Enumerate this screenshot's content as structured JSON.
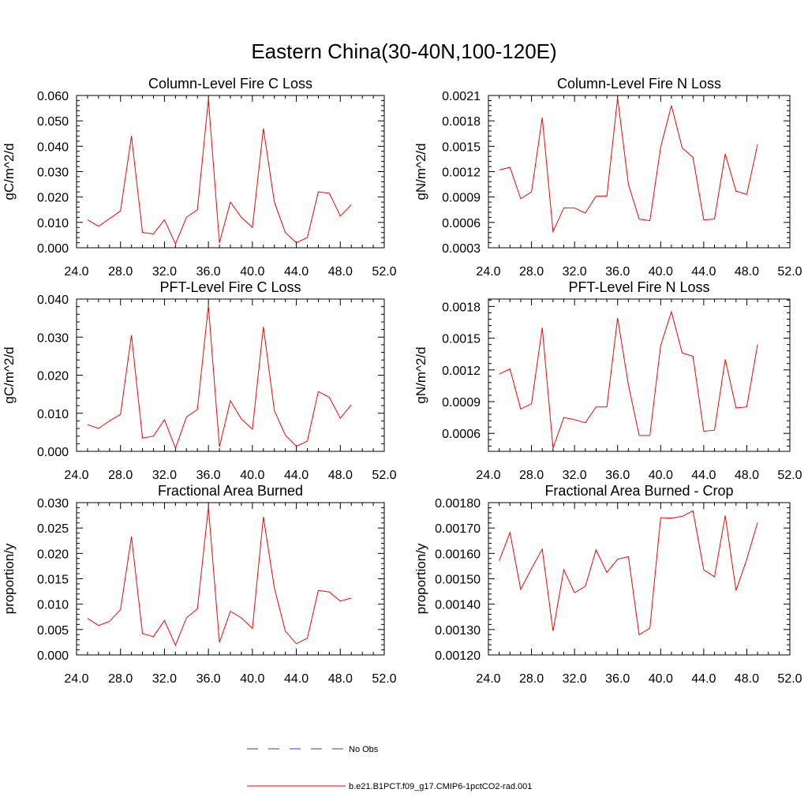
{
  "figure_title": "Eastern China(30-40N,100-120E)",
  "legend": {
    "entries": [
      {
        "label": "No Obs",
        "color": "#3b3bb4",
        "style": "dashed"
      },
      {
        "label": "b.e21.B1PCT.f09_g17.CMIP6-1pctCO2-rad.001",
        "color": "#ff0000",
        "style": "solid"
      }
    ]
  },
  "chart_data": [
    {
      "type": "line",
      "title": "Column-Level Fire C Loss",
      "ylabel": "gC/m^2/d",
      "xlim": [
        24,
        52
      ],
      "ylim": [
        0,
        0.06
      ],
      "xticks": [
        24,
        28,
        32,
        36,
        40,
        44,
        48,
        52
      ],
      "xtick_labels": [
        "24.0",
        "28.0",
        "32.0",
        "36.0",
        "40.0",
        "44.0",
        "48.0",
        "52.0"
      ],
      "yticks": [
        0,
        0.01,
        0.02,
        0.03,
        0.04,
        0.05,
        0.06
      ],
      "ytick_labels": [
        "0.000",
        "0.010",
        "0.020",
        "0.030",
        "0.040",
        "0.050",
        "0.060"
      ],
      "x": [
        25,
        26,
        27,
        28,
        29,
        30,
        31,
        32,
        33,
        34,
        35,
        36,
        37,
        38,
        39,
        40,
        41,
        42,
        43,
        44,
        45,
        46,
        47,
        48,
        49
      ],
      "series": [
        {
          "color": "#ff0000",
          "values": [
            0.011,
            0.0085,
            0.0115,
            0.0145,
            0.044,
            0.006,
            0.0055,
            0.011,
            0.0015,
            0.012,
            0.015,
            0.0585,
            0.002,
            0.018,
            0.012,
            0.008,
            0.047,
            0.018,
            0.006,
            0.002,
            0.004,
            0.022,
            0.0215,
            0.0125,
            0.017
          ]
        }
      ]
    },
    {
      "type": "line",
      "title": "Column-Level Fire N Loss",
      "ylabel": "gN/m^2/d",
      "xlim": [
        24,
        52
      ],
      "ylim": [
        0.0003,
        0.0021
      ],
      "xticks": [
        24,
        28,
        32,
        36,
        40,
        44,
        48,
        52
      ],
      "xtick_labels": [
        "24.0",
        "28.0",
        "32.0",
        "36.0",
        "40.0",
        "44.0",
        "48.0",
        "52.0"
      ],
      "yticks": [
        0.0003,
        0.0006,
        0.0009,
        0.0012,
        0.0015,
        0.0018,
        0.0021
      ],
      "ytick_labels": [
        "0.0003",
        "0.0006",
        "0.0009",
        "0.0012",
        "0.0015",
        "0.0018",
        "0.0021"
      ],
      "x": [
        25,
        26,
        27,
        28,
        29,
        30,
        31,
        32,
        33,
        34,
        35,
        36,
        37,
        38,
        39,
        40,
        41,
        42,
        43,
        44,
        45,
        46,
        47,
        48,
        49
      ],
      "series": [
        {
          "color": "#ff0000",
          "values": [
            0.00122,
            0.00125,
            0.00088,
            0.00096,
            0.00184,
            0.00049,
            0.00077,
            0.00077,
            0.00071,
            0.00091,
            0.00091,
            0.00207,
            0.00105,
            0.00064,
            0.00062,
            0.00149,
            0.00198,
            0.00148,
            0.00137,
            0.00063,
            0.00064,
            0.00141,
            0.00097,
            0.00093,
            0.00152
          ]
        }
      ]
    },
    {
      "type": "line",
      "title": "PFT-Level Fire C Loss",
      "ylabel": "gC/m^2/d",
      "xlim": [
        24,
        52
      ],
      "ylim": [
        0,
        0.04
      ],
      "xticks": [
        24,
        28,
        32,
        36,
        40,
        44,
        48,
        52
      ],
      "xtick_labels": [
        "24.0",
        "28.0",
        "32.0",
        "36.0",
        "40.0",
        "44.0",
        "48.0",
        "52.0"
      ],
      "yticks": [
        0,
        0.01,
        0.02,
        0.03,
        0.04
      ],
      "ytick_labels": [
        "0.000",
        "0.010",
        "0.020",
        "0.030",
        "0.040"
      ],
      "x": [
        25,
        26,
        27,
        28,
        29,
        30,
        31,
        32,
        33,
        34,
        35,
        36,
        37,
        38,
        39,
        40,
        41,
        42,
        43,
        44,
        45,
        46,
        47,
        48,
        49
      ],
      "series": [
        {
          "color": "#ff0000",
          "values": [
            0.007,
            0.006,
            0.008,
            0.0097,
            0.0305,
            0.0035,
            0.004,
            0.0083,
            0.0008,
            0.009,
            0.011,
            0.0383,
            0.0012,
            0.0133,
            0.0085,
            0.0058,
            0.0327,
            0.0107,
            0.0043,
            0.0013,
            0.0027,
            0.0157,
            0.0142,
            0.0087,
            0.0122
          ]
        }
      ]
    },
    {
      "type": "line",
      "title": "PFT-Level Fire N Loss",
      "ylabel": "gN/m^2/d",
      "xlim": [
        24,
        52
      ],
      "ylim": [
        0.00043,
        0.00187
      ],
      "xticks": [
        24,
        28,
        32,
        36,
        40,
        44,
        48,
        52
      ],
      "xtick_labels": [
        "24.0",
        "28.0",
        "32.0",
        "36.0",
        "40.0",
        "44.0",
        "48.0",
        "52.0"
      ],
      "yticks": [
        0.0006,
        0.0009,
        0.0012,
        0.0015,
        0.0018
      ],
      "ytick_labels": [
        "0.0006",
        "0.0009",
        "0.0012",
        "0.0015",
        "0.0018"
      ],
      "x": [
        25,
        26,
        27,
        28,
        29,
        30,
        31,
        32,
        33,
        34,
        35,
        36,
        37,
        38,
        39,
        40,
        41,
        42,
        43,
        44,
        45,
        46,
        47,
        48,
        49
      ],
      "series": [
        {
          "color": "#ff0000",
          "values": [
            0.00116,
            0.00121,
            0.00083,
            0.00088,
            0.0016,
            0.00046,
            0.00075,
            0.00073,
            0.0007,
            0.00085,
            0.00085,
            0.00169,
            0.00106,
            0.00058,
            0.00058,
            0.00143,
            0.00175,
            0.00136,
            0.00133,
            0.00062,
            0.00063,
            0.0013,
            0.00084,
            0.00085,
            0.00144
          ]
        }
      ]
    },
    {
      "type": "line",
      "title": "Fractional Area Burned",
      "ylabel": "proportion/y",
      "xlim": [
        24,
        52
      ],
      "ylim": [
        0,
        0.03
      ],
      "xticks": [
        24,
        28,
        32,
        36,
        40,
        44,
        48,
        52
      ],
      "xtick_labels": [
        "24.0",
        "28.0",
        "32.0",
        "36.0",
        "40.0",
        "44.0",
        "48.0",
        "52.0"
      ],
      "yticks": [
        0,
        0.005,
        0.01,
        0.015,
        0.02,
        0.025,
        0.03
      ],
      "ytick_labels": [
        "0.000",
        "0.005",
        "0.010",
        "0.015",
        "0.020",
        "0.025",
        "0.030"
      ],
      "x": [
        25,
        26,
        27,
        28,
        29,
        30,
        31,
        32,
        33,
        34,
        35,
        36,
        37,
        38,
        39,
        40,
        41,
        42,
        43,
        44,
        45,
        46,
        47,
        48,
        49
      ],
      "series": [
        {
          "color": "#ff0000",
          "values": [
            0.0072,
            0.0058,
            0.0066,
            0.0089,
            0.0233,
            0.0042,
            0.0036,
            0.0068,
            0.0019,
            0.0073,
            0.0091,
            0.0291,
            0.0025,
            0.0086,
            0.0073,
            0.0052,
            0.0272,
            0.0132,
            0.0047,
            0.0022,
            0.0033,
            0.0127,
            0.0124,
            0.0106,
            0.0112
          ]
        }
      ]
    },
    {
      "type": "line",
      "title": "Fractional Area Burned - Crop",
      "ylabel": "proportion/y",
      "xlim": [
        24,
        52
      ],
      "ylim": [
        0.0012,
        0.0018
      ],
      "xticks": [
        24,
        28,
        32,
        36,
        40,
        44,
        48,
        52
      ],
      "xtick_labels": [
        "24.0",
        "28.0",
        "32.0",
        "36.0",
        "40.0",
        "44.0",
        "48.0",
        "52.0"
      ],
      "yticks": [
        0.0012,
        0.0013,
        0.0014,
        0.0015,
        0.0016,
        0.0017,
        0.0018
      ],
      "ytick_labels": [
        "0.00120",
        "0.00130",
        "0.00140",
        "0.00150",
        "0.00160",
        "0.00170",
        "0.00180"
      ],
      "x": [
        25,
        26,
        27,
        28,
        29,
        30,
        31,
        32,
        33,
        34,
        35,
        36,
        37,
        38,
        39,
        40,
        41,
        42,
        43,
        44,
        45,
        46,
        47,
        48,
        49
      ],
      "series": [
        {
          "color": "#ff0000",
          "values": [
            0.001571,
            0.001682,
            0.001458,
            0.00154,
            0.001617,
            0.001294,
            0.001536,
            0.001445,
            0.00147,
            0.001614,
            0.001525,
            0.001577,
            0.001587,
            0.00128,
            0.001305,
            0.001741,
            0.001739,
            0.001746,
            0.001768,
            0.001535,
            0.001508,
            0.001749,
            0.001454,
            0.001577,
            0.001722
          ]
        }
      ]
    }
  ]
}
